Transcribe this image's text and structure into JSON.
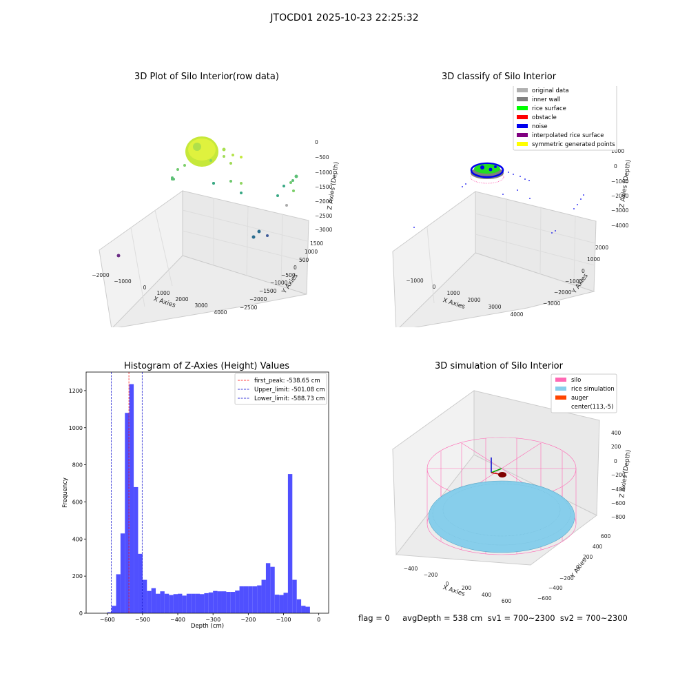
{
  "suptitle": "JTOCD01 2025-10-23 22:25:32",
  "footer": "flag = 0     avgDepth = 538 cm  sv1 = 700~2300  sv2 = 700~2300",
  "colors": {
    "hist_bar": "#4d4dff",
    "first_peak": "#ff0000",
    "limits": "#0000cc",
    "grid": "#d3d3d3",
    "pane": "#f2f2f2"
  },
  "panels": {
    "raw": {
      "title": "3D Plot of Silo Interior(row data)",
      "xlabel": "X Axies",
      "ylabel": "Y Axies",
      "zlabel": "Z Axies (Depth)",
      "xticks": [
        "−2000",
        "−1000",
        "0",
        "1000",
        "2000",
        "3000",
        "4000"
      ],
      "yticks": [
        "1500",
        "1000",
        "500",
        "0",
        "−500",
        "−1000",
        "−1500",
        "−2000",
        "−2500"
      ],
      "zticks": [
        "0",
        "−500",
        "−1000",
        "−1500",
        "−2000",
        "−2500",
        "−3000"
      ]
    },
    "classify": {
      "title": "3D classify of Silo Interior",
      "xlabel": "X Axies",
      "ylabel": "Y Axies",
      "zlabel": "Z Axies (Depth)",
      "xticks": [
        "−1000",
        "0",
        "1000",
        "2000",
        "3000",
        "4000"
      ],
      "yticks": [
        "2000",
        "1000",
        "0",
        "−1000",
        "−2000",
        "−3000"
      ],
      "zticks": [
        "1000",
        "0",
        "−1000",
        "−2000",
        "−3000",
        "−4000"
      ],
      "legend": [
        {
          "label": "original data",
          "color": "#b0b0b0"
        },
        {
          "label": "inner wall",
          "color": "#808080"
        },
        {
          "label": "rice surface",
          "color": "#00ff00"
        },
        {
          "label": "obstacle",
          "color": "#ff0000"
        },
        {
          "label": "noise",
          "color": "#0000ee"
        },
        {
          "label": "interpolated rice surface",
          "color": "#800080"
        },
        {
          "label": "symmetric generated points",
          "color": "#ffff00"
        }
      ]
    },
    "simulation": {
      "title": "3D simulation of Silo Interior",
      "xlabel": "X Axies",
      "ylabel": "Y Axies",
      "zlabel": "Z Axies (Depth)",
      "xticks": [
        "−400",
        "−200",
        "0",
        "200",
        "400",
        "600"
      ],
      "yticks": [
        "600",
        "400",
        "200",
        "0",
        "−200",
        "−400",
        "−600"
      ],
      "zticks": [
        "400",
        "200",
        "0",
        "−200",
        "−400",
        "−600",
        "−800"
      ],
      "legend": [
        {
          "label": "silo",
          "color": "#ff69b4"
        },
        {
          "label": "rice simulation",
          "color": "#87ceeb"
        },
        {
          "label": "auger",
          "color": "#ff4500"
        },
        {
          "label": "center(113,-5)",
          "color": ""
        }
      ]
    }
  },
  "chart_data": {
    "type": "bar",
    "title": "Histogram of Z-Axies (Height) Values",
    "xlabel": "Depth (cm)",
    "ylabel": "Frequency",
    "xlim": [
      -660,
      28
    ],
    "ylim": [
      0,
      1300
    ],
    "xticks": [
      -600,
      -500,
      -400,
      -300,
      -200,
      -100,
      0
    ],
    "yticks": [
      0,
      200,
      400,
      600,
      800,
      1000,
      1200
    ],
    "grid": false,
    "legend_position": "top-right",
    "bin_start": -600,
    "bin_width": 12.5,
    "values": [
      5,
      40,
      210,
      430,
      1080,
      1235,
      680,
      320,
      180,
      120,
      135,
      105,
      118,
      105,
      98,
      103,
      105,
      95,
      105,
      105,
      105,
      103,
      108,
      112,
      120,
      118,
      118,
      115,
      115,
      122,
      145,
      145,
      145,
      145,
      150,
      180,
      270,
      250,
      100,
      98,
      110,
      750,
      180,
      75,
      40,
      35
    ],
    "vlines": [
      {
        "name": "first_peak: -538.65 cm",
        "x": -538.65,
        "color": "#ff0000"
      },
      {
        "name": "Upper_limit: -501.08 cm",
        "x": -501.08,
        "color": "#0000cc"
      },
      {
        "name": "Lower_limit: -588.73 cm",
        "x": -588.73,
        "color": "#0000cc"
      }
    ]
  }
}
